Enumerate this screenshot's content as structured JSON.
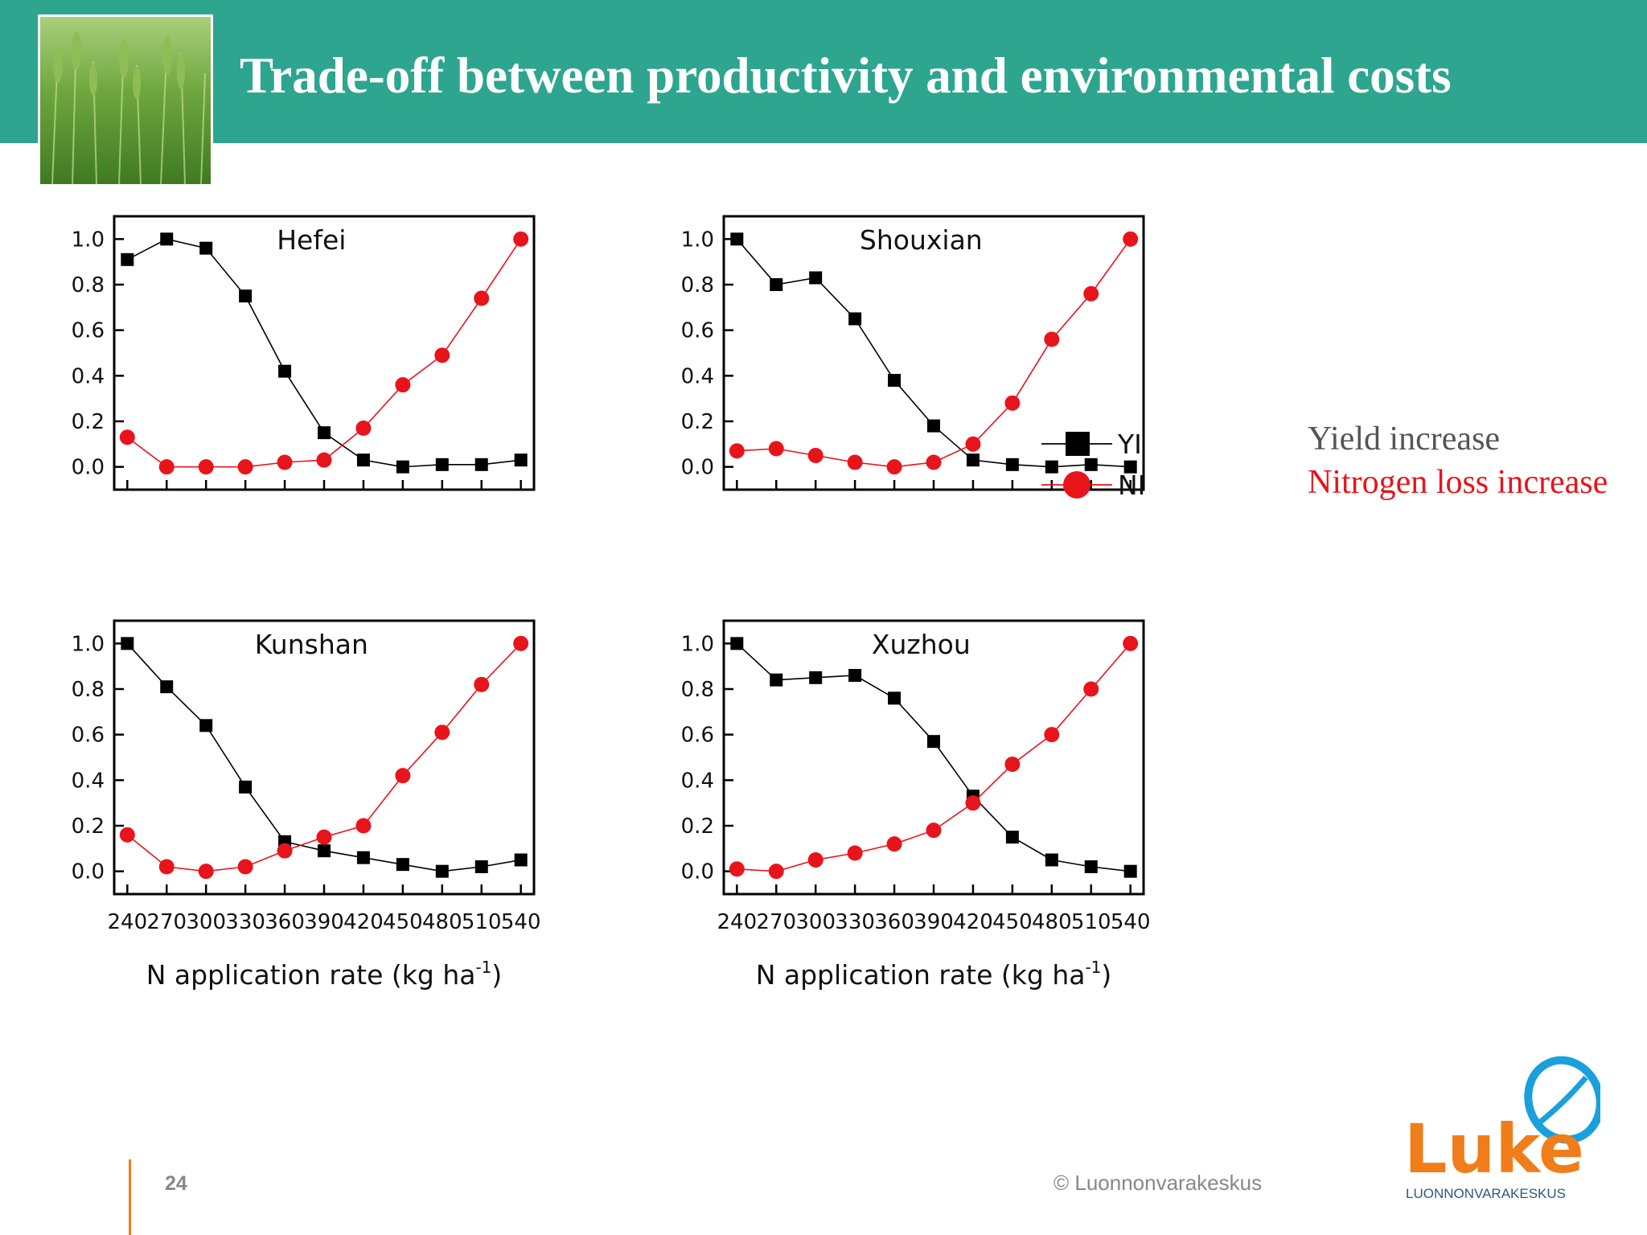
{
  "slide": {
    "title": "Trade-off between productivity and environmental costs",
    "page_number": "24",
    "copyright": "© Luonnonvarakeskus"
  },
  "legend_notes": {
    "yield": "Yield increase",
    "nitrogen": "Nitrogen loss increase"
  },
  "logo": {
    "wordmark": "Luke",
    "subtitle": "LUONNONVARAKESKUS"
  },
  "colors": {
    "header": "#2ea58f",
    "yi_series": "#000000",
    "ni_series": "#e8141b",
    "logo_orange": "#f07d1a",
    "logo_blue": "#1aa0dc"
  },
  "chart_data": [
    {
      "type": "line",
      "title": "Hefei",
      "x": [
        240,
        270,
        300,
        330,
        360,
        390,
        420,
        450,
        480,
        510,
        540
      ],
      "xticks": [
        "240",
        "270",
        "300",
        "330",
        "360",
        "390",
        "420",
        "450",
        "480",
        "510",
        "540"
      ],
      "xlabel": "",
      "xlim": [
        230,
        550
      ],
      "ylim": [
        -0.1,
        1.1
      ],
      "yticks": [
        "0.0",
        "0.2",
        "0.4",
        "0.6",
        "0.8",
        "1.0"
      ],
      "series": [
        {
          "name": "YI",
          "marker": "square",
          "values": [
            0.91,
            1.0,
            0.96,
            0.75,
            0.42,
            0.15,
            0.03,
            0.0,
            0.01,
            0.01,
            0.03
          ]
        },
        {
          "name": "NI",
          "marker": "circle",
          "values": [
            0.13,
            0.0,
            0.0,
            0.0,
            0.02,
            0.03,
            0.17,
            0.36,
            0.49,
            0.74,
            1.0
          ]
        }
      ]
    },
    {
      "type": "line",
      "title": "Shouxian",
      "x": [
        240,
        270,
        300,
        330,
        360,
        390,
        420,
        450,
        480,
        510,
        540
      ],
      "xticks": [
        "240",
        "270",
        "300",
        "330",
        "360",
        "390",
        "420",
        "450",
        "480",
        "510",
        "540"
      ],
      "xlabel": "",
      "xlim": [
        230,
        550
      ],
      "ylim": [
        -0.1,
        1.1
      ],
      "yticks": [
        "0.0",
        "0.2",
        "0.4",
        "0.6",
        "0.8",
        "1.0"
      ],
      "legend": {
        "placement": "right",
        "entries": [
          "YI",
          "NI"
        ]
      },
      "series": [
        {
          "name": "YI",
          "marker": "square",
          "values": [
            1.0,
            0.8,
            0.83,
            0.65,
            0.38,
            0.18,
            0.03,
            0.01,
            0.0,
            0.01,
            0.0
          ]
        },
        {
          "name": "NI",
          "marker": "circle",
          "values": [
            0.07,
            0.08,
            0.05,
            0.02,
            0.0,
            0.02,
            0.1,
            0.28,
            0.56,
            0.76,
            1.0
          ]
        }
      ]
    },
    {
      "type": "line",
      "title": "Kunshan",
      "x": [
        240,
        270,
        300,
        330,
        360,
        390,
        420,
        450,
        480,
        510,
        540
      ],
      "xticks": [
        "240",
        "270",
        "300",
        "330",
        "360",
        "390",
        "420",
        "450",
        "480",
        "510",
        "540"
      ],
      "xlabel": "N application rate (kg ha",
      "xlabel_sup": "-1",
      "xlabel_tail": ")",
      "xlim": [
        230,
        550
      ],
      "ylim": [
        -0.1,
        1.1
      ],
      "yticks": [
        "0.0",
        "0.2",
        "0.4",
        "0.6",
        "0.8",
        "1.0"
      ],
      "series": [
        {
          "name": "YI",
          "marker": "square",
          "values": [
            1.0,
            0.81,
            0.64,
            0.37,
            0.13,
            0.09,
            0.06,
            0.03,
            0.0,
            0.02,
            0.05
          ]
        },
        {
          "name": "NI",
          "marker": "circle",
          "values": [
            0.16,
            0.02,
            0.0,
            0.02,
            0.09,
            0.15,
            0.2,
            0.42,
            0.61,
            0.82,
            1.0
          ]
        }
      ]
    },
    {
      "type": "line",
      "title": "Xuzhou",
      "x": [
        240,
        270,
        300,
        330,
        360,
        390,
        420,
        450,
        480,
        510,
        540
      ],
      "xticks": [
        "240",
        "270",
        "300",
        "330",
        "360",
        "390",
        "420",
        "450",
        "480",
        "510",
        "540"
      ],
      "xlabel": "N application rate (kg ha",
      "xlabel_sup": "-1",
      "xlabel_tail": ")",
      "xlim": [
        230,
        550
      ],
      "ylim": [
        -0.1,
        1.1
      ],
      "yticks": [
        "0.0",
        "0.2",
        "0.4",
        "0.6",
        "0.8",
        "1.0"
      ],
      "series": [
        {
          "name": "YI",
          "marker": "square",
          "values": [
            1.0,
            0.84,
            0.85,
            0.86,
            0.76,
            0.57,
            0.33,
            0.15,
            0.05,
            0.02,
            0.0
          ]
        },
        {
          "name": "NI",
          "marker": "circle",
          "values": [
            0.01,
            0.0,
            0.05,
            0.08,
            0.12,
            0.18,
            0.3,
            0.47,
            0.6,
            0.8,
            1.0
          ]
        }
      ]
    }
  ]
}
